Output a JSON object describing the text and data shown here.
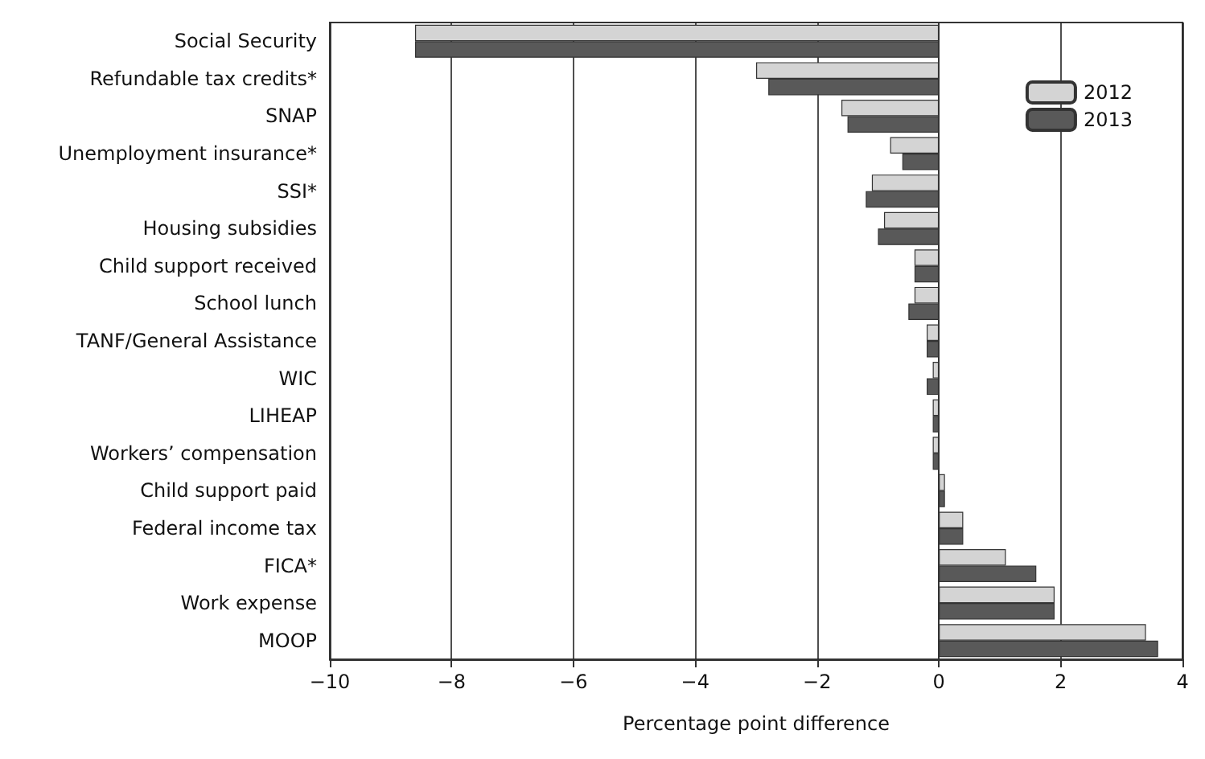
{
  "chart_data": {
    "type": "bar",
    "orientation": "horizontal",
    "xlabel": "Percentage point difference",
    "categories": [
      "Social Security",
      "Refundable tax credits*",
      "SNAP",
      "Unemployment insurance*",
      "SSI*",
      "Housing subsidies",
      "Child support received",
      "School lunch",
      "TANF/General Assistance",
      "WIC",
      "LIHEAP",
      "Workers’ compensation",
      "Child support paid",
      "Federal income tax",
      "FICA*",
      "Work expense",
      "MOOP"
    ],
    "series": [
      {
        "name": "2012",
        "color": "#d4d4d4",
        "values": [
          -8.6,
          -3.0,
          -1.6,
          -0.8,
          -1.1,
          -0.9,
          -0.4,
          -0.4,
          -0.2,
          -0.1,
          -0.1,
          -0.1,
          0.1,
          0.4,
          1.1,
          1.9,
          3.4
        ]
      },
      {
        "name": "2013",
        "color": "#595959",
        "values": [
          -8.6,
          -2.8,
          -1.5,
          -0.6,
          -1.2,
          -1.0,
          -0.4,
          -0.5,
          -0.2,
          -0.2,
          -0.1,
          -0.1,
          0.1,
          0.4,
          1.6,
          1.9,
          3.6
        ]
      }
    ],
    "xlim": [
      -10,
      4
    ],
    "xticks": [
      -10,
      -8,
      -6,
      -4,
      -2,
      0,
      2,
      4
    ],
    "grid": "x",
    "legend": "top right"
  }
}
